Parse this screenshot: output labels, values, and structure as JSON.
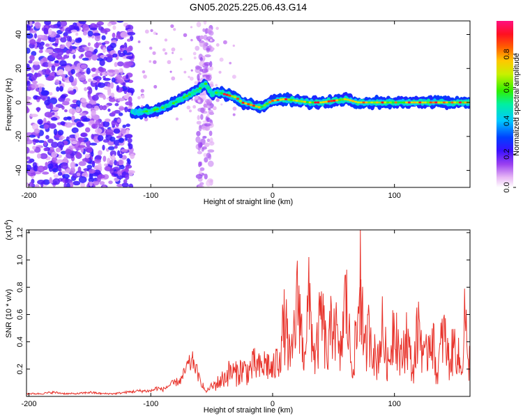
{
  "title": "GN05.2025.225.06.43.G14",
  "colorbar": {
    "label": "Normalized spectral amplitude",
    "ticks": [
      "0.0",
      "0.2",
      "0.4",
      "0.6",
      "0.8"
    ],
    "tick_values": [
      0.0,
      0.2,
      0.4,
      0.6,
      0.8
    ],
    "range": [
      0,
      1
    ]
  },
  "chart_data": [
    {
      "type": "heatmap",
      "title": "GN05.2025.225.06.43.G14",
      "xlabel": "Height of straight line (km)",
      "ylabel": "Frequency (Hz)",
      "xlim": [
        -202,
        162
      ],
      "ylim": [
        -50,
        48
      ],
      "xticks": [
        -200,
        -100,
        0,
        100
      ],
      "xtick_labels": [
        "-200",
        "-100",
        "0",
        "100"
      ],
      "yticks": [
        40,
        20,
        0,
        -20,
        -40
      ],
      "ytick_labels": [
        "40",
        "20",
        "0",
        "-20",
        "-40"
      ],
      "ridge": {
        "x": [
          -115,
          -100,
          -90,
          -80,
          -70,
          -60,
          -55,
          -50,
          -45,
          -40,
          -35,
          -30,
          -25,
          -20,
          -15,
          -10,
          -5,
          0,
          10,
          20,
          30,
          40,
          50,
          60,
          70,
          80,
          90,
          100,
          110,
          120,
          130,
          140,
          150,
          160
        ],
        "frequency": [
          -6,
          -5,
          -3,
          0,
          4,
          8,
          11,
          5,
          6,
          5,
          4,
          3,
          0,
          -1,
          -2,
          -3,
          -1,
          1,
          2,
          1,
          0,
          0,
          1,
          2,
          0,
          0,
          0,
          0,
          0,
          0,
          0,
          0,
          0,
          0
        ]
      }
    },
    {
      "type": "line",
      "xlabel": "Height of straight line (km)",
      "ylabel": "SNR (10 * v/v)",
      "y_multiplier_label": "(x10",
      "y_multiplier_exp": "4",
      "y_multiplier_close": ")",
      "xlim": [
        -202,
        162
      ],
      "ylim": [
        0,
        1.22
      ],
      "xticks": [
        -200,
        -100,
        0,
        100
      ],
      "xtick_labels": [
        "-200",
        "-100",
        "0",
        "100"
      ],
      "yticks": [
        0.2,
        0.4,
        0.6,
        0.8,
        1.0,
        1.2
      ],
      "ytick_labels": [
        "0.2",
        "0.4",
        "0.6",
        "0.8",
        "1.0",
        "1.2"
      ],
      "series": [
        {
          "color": "#e8322a",
          "x": [
            -202,
            -190,
            -180,
            -170,
            -160,
            -150,
            -140,
            -130,
            -120,
            -110,
            -100,
            -95,
            -90,
            -85,
            -80,
            -75,
            -70,
            -65,
            -62,
            -60,
            -57,
            -55,
            -50,
            -45,
            -40,
            -35,
            -30,
            -25,
            -20,
            -15,
            -10,
            -5,
            0,
            5,
            10,
            15,
            20,
            22,
            25,
            30,
            35,
            40,
            45,
            50,
            55,
            60,
            65,
            70,
            72,
            75,
            80,
            85,
            90,
            95,
            100,
            105,
            110,
            115,
            120,
            125,
            130,
            135,
            140,
            145,
            150,
            155,
            158,
            160,
            162
          ],
          "y": [
            0.02,
            0.02,
            0.03,
            0.02,
            0.02,
            0.03,
            0.02,
            0.02,
            0.03,
            0.04,
            0.04,
            0.06,
            0.05,
            0.08,
            0.1,
            0.12,
            0.22,
            0.26,
            0.18,
            0.12,
            0.08,
            0.03,
            0.08,
            0.12,
            0.16,
            0.22,
            0.2,
            0.24,
            0.22,
            0.28,
            0.24,
            0.3,
            0.22,
            0.35,
            0.65,
            0.28,
            0.8,
            0.86,
            0.35,
            0.82,
            0.3,
            0.74,
            0.32,
            0.78,
            0.3,
            0.88,
            0.25,
            0.6,
            1.22,
            0.35,
            0.62,
            0.28,
            0.58,
            0.25,
            0.72,
            0.3,
            0.55,
            0.2,
            0.66,
            0.28,
            0.62,
            0.18,
            0.58,
            0.3,
            0.48,
            0.2,
            0.82,
            0.22,
            0.35
          ]
        }
      ]
    }
  ]
}
